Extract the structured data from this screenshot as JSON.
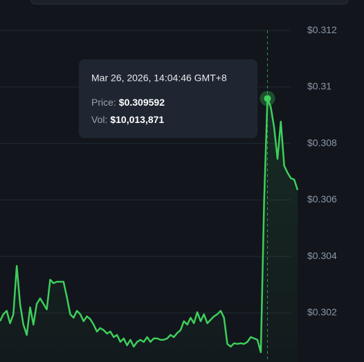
{
  "chart_data": {
    "type": "line",
    "series": [
      {
        "color": "#3ecf5c",
        "values": [
          0.301707,
          0.301951,
          0.302073,
          0.301633,
          0.301951,
          0.303663,
          0.302318,
          0.301584,
          0.301218,
          0.302196,
          0.301584,
          0.302318,
          0.302513,
          0.302318,
          0.302122,
          0.303174,
          0.303051,
          0.3031,
          0.3031,
          0.3031,
          0.302562,
          0.301951,
          0.301829,
          0.302073,
          0.301951,
          0.301707,
          0.301878,
          0.30178,
          0.301584,
          0.30134,
          0.301462,
          0.301389,
          0.301267,
          0.30134,
          0.301144,
          0.301218,
          0.300973,
          0.301095,
          0.300851,
          0.301046,
          0.300802,
          0.300973,
          0.301046,
          0.300973,
          0.301144,
          0.300973,
          0.301095,
          0.301095,
          0.301046,
          0.301046,
          0.301095,
          0.301218,
          0.301144,
          0.301291,
          0.301389,
          0.301707,
          0.301584,
          0.301829,
          0.301633,
          0.302024,
          0.301707,
          0.301951,
          0.301633,
          0.301756,
          0.301878,
          0.301951,
          0.302073,
          0.301829,
          0.3009,
          0.300802,
          0.300924,
          0.3009,
          0.300924,
          0.3009,
          0.300973,
          0.301144,
          0.301095,
          0.301046,
          0.300606,
          0.305985,
          0.309592,
          0.309286,
          0.308553,
          0.307452,
          0.308773,
          0.307208,
          0.306963,
          0.306768,
          0.306719,
          0.306352
        ]
      }
    ],
    "ylim": [
      0.30026,
      0.31308
    ],
    "yticks": [
      {
        "value": 0.302,
        "label": "$0.302"
      },
      {
        "value": 0.304,
        "label": "$0.304"
      },
      {
        "value": 0.306,
        "label": "$0.306"
      },
      {
        "value": 0.308,
        "label": "$0.308"
      },
      {
        "value": 0.31,
        "label": "$0.31"
      },
      {
        "value": 0.312,
        "label": "$0.312"
      }
    ],
    "grid": true,
    "tooltip": {
      "date": "Mar 26, 2026, 14:04:46 GMT+8",
      "price_label": "Price:",
      "price": "$0.309592",
      "vol_label": "Vol:",
      "vol": "$10,013,871"
    }
  }
}
